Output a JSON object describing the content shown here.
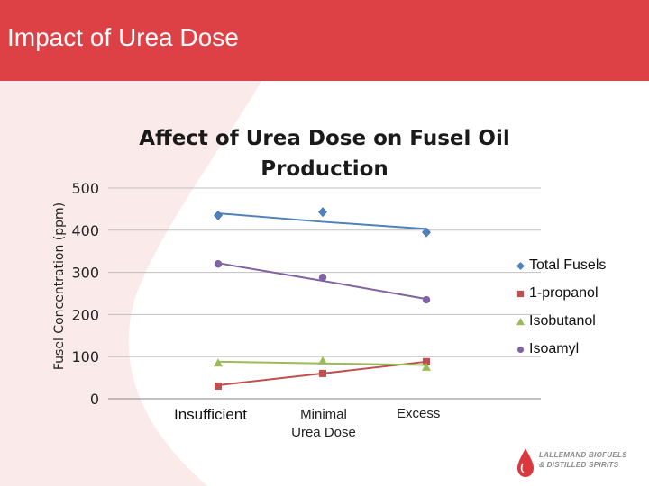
{
  "slide": {
    "title": "Impact of Urea Dose",
    "header_color": "#dd4146"
  },
  "logo": {
    "line1": "LALLEMAND BIOFUELS",
    "line2": "& DISTILLED SPIRITS"
  },
  "chart_data": {
    "type": "line",
    "title": "Affect of Urea Dose on Fusel Oil Production",
    "ylabel": "Fusel Concentration (ppm)",
    "xlabel": "Urea Dose",
    "categories": [
      "Insufficient",
      "Minimal",
      "Excess"
    ],
    "ylim": [
      0,
      500
    ],
    "yticks": [
      0,
      100,
      200,
      300,
      400,
      500
    ],
    "grid": true,
    "legend_position": "right",
    "series": [
      {
        "name": "Total Fusels",
        "values": [
          435,
          443,
          395
        ],
        "marker": "diamond",
        "color": "#4f81bd",
        "trend": [
          440,
          420,
          403
        ]
      },
      {
        "name": "1-propanol",
        "values": [
          30,
          60,
          88
        ],
        "marker": "square",
        "color": "#c0504d",
        "trend": [
          32,
          60,
          88
        ]
      },
      {
        "name": "Isobutanol",
        "values": [
          85,
          90,
          75
        ],
        "marker": "triangle",
        "color": "#9bbb59",
        "trend": [
          88,
          84,
          80
        ]
      },
      {
        "name": "Isoamyl",
        "values": [
          320,
          288,
          235
        ],
        "marker": "circle",
        "color": "#8064a2",
        "trend": [
          322,
          280,
          237
        ]
      }
    ]
  }
}
